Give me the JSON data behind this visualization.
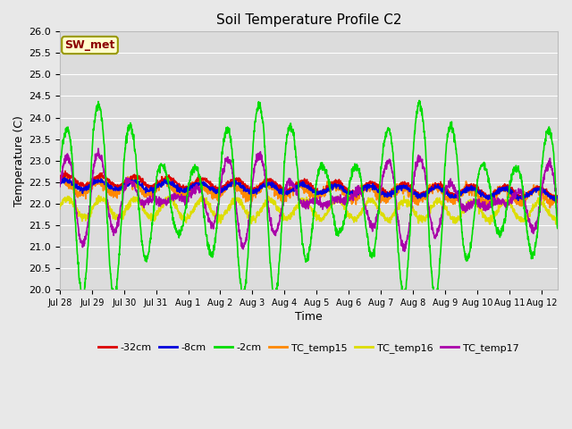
{
  "title": "Soil Temperature Profile C2",
  "xlabel": "Time",
  "ylabel": "Temperature (C)",
  "ylim": [
    20.0,
    26.0
  ],
  "xlim_start": 0,
  "xlim_end": 15.5,
  "bg_color": "#e8e8e8",
  "plot_bg_color": "#dcdcdc",
  "annotation_text": "SW_met",
  "annotation_color": "#8B0000",
  "annotation_bg": "#ffffcc",
  "annotation_border": "#999900",
  "x_tick_labels": [
    "Jul 28",
    "Jul 29",
    "Jul 30",
    "Jul 31",
    "Aug 1",
    "Aug 2",
    "Aug 3",
    "Aug 4",
    "Aug 5",
    "Aug 6",
    "Aug 7",
    "Aug 8",
    "Aug 9",
    "Aug 10",
    "Aug 11",
    "Aug 12"
  ],
  "yticks": [
    20.0,
    20.5,
    21.0,
    21.5,
    22.0,
    22.5,
    23.0,
    23.5,
    24.0,
    24.5,
    25.0,
    25.5,
    26.0
  ],
  "series": {
    "neg32cm": {
      "color": "#dd0000",
      "label": "-32cm",
      "lw": 1.2
    },
    "neg8cm": {
      "color": "#0000dd",
      "label": "-8cm",
      "lw": 1.2
    },
    "neg2cm": {
      "color": "#00dd00",
      "label": "-2cm",
      "lw": 1.2
    },
    "TC_temp15": {
      "color": "#ff8800",
      "label": "TC_temp15",
      "lw": 1.2
    },
    "TC_temp16": {
      "color": "#dddd00",
      "label": "TC_temp16",
      "lw": 1.2
    },
    "TC_temp17": {
      "color": "#aa00aa",
      "label": "TC_temp17",
      "lw": 1.2
    }
  }
}
